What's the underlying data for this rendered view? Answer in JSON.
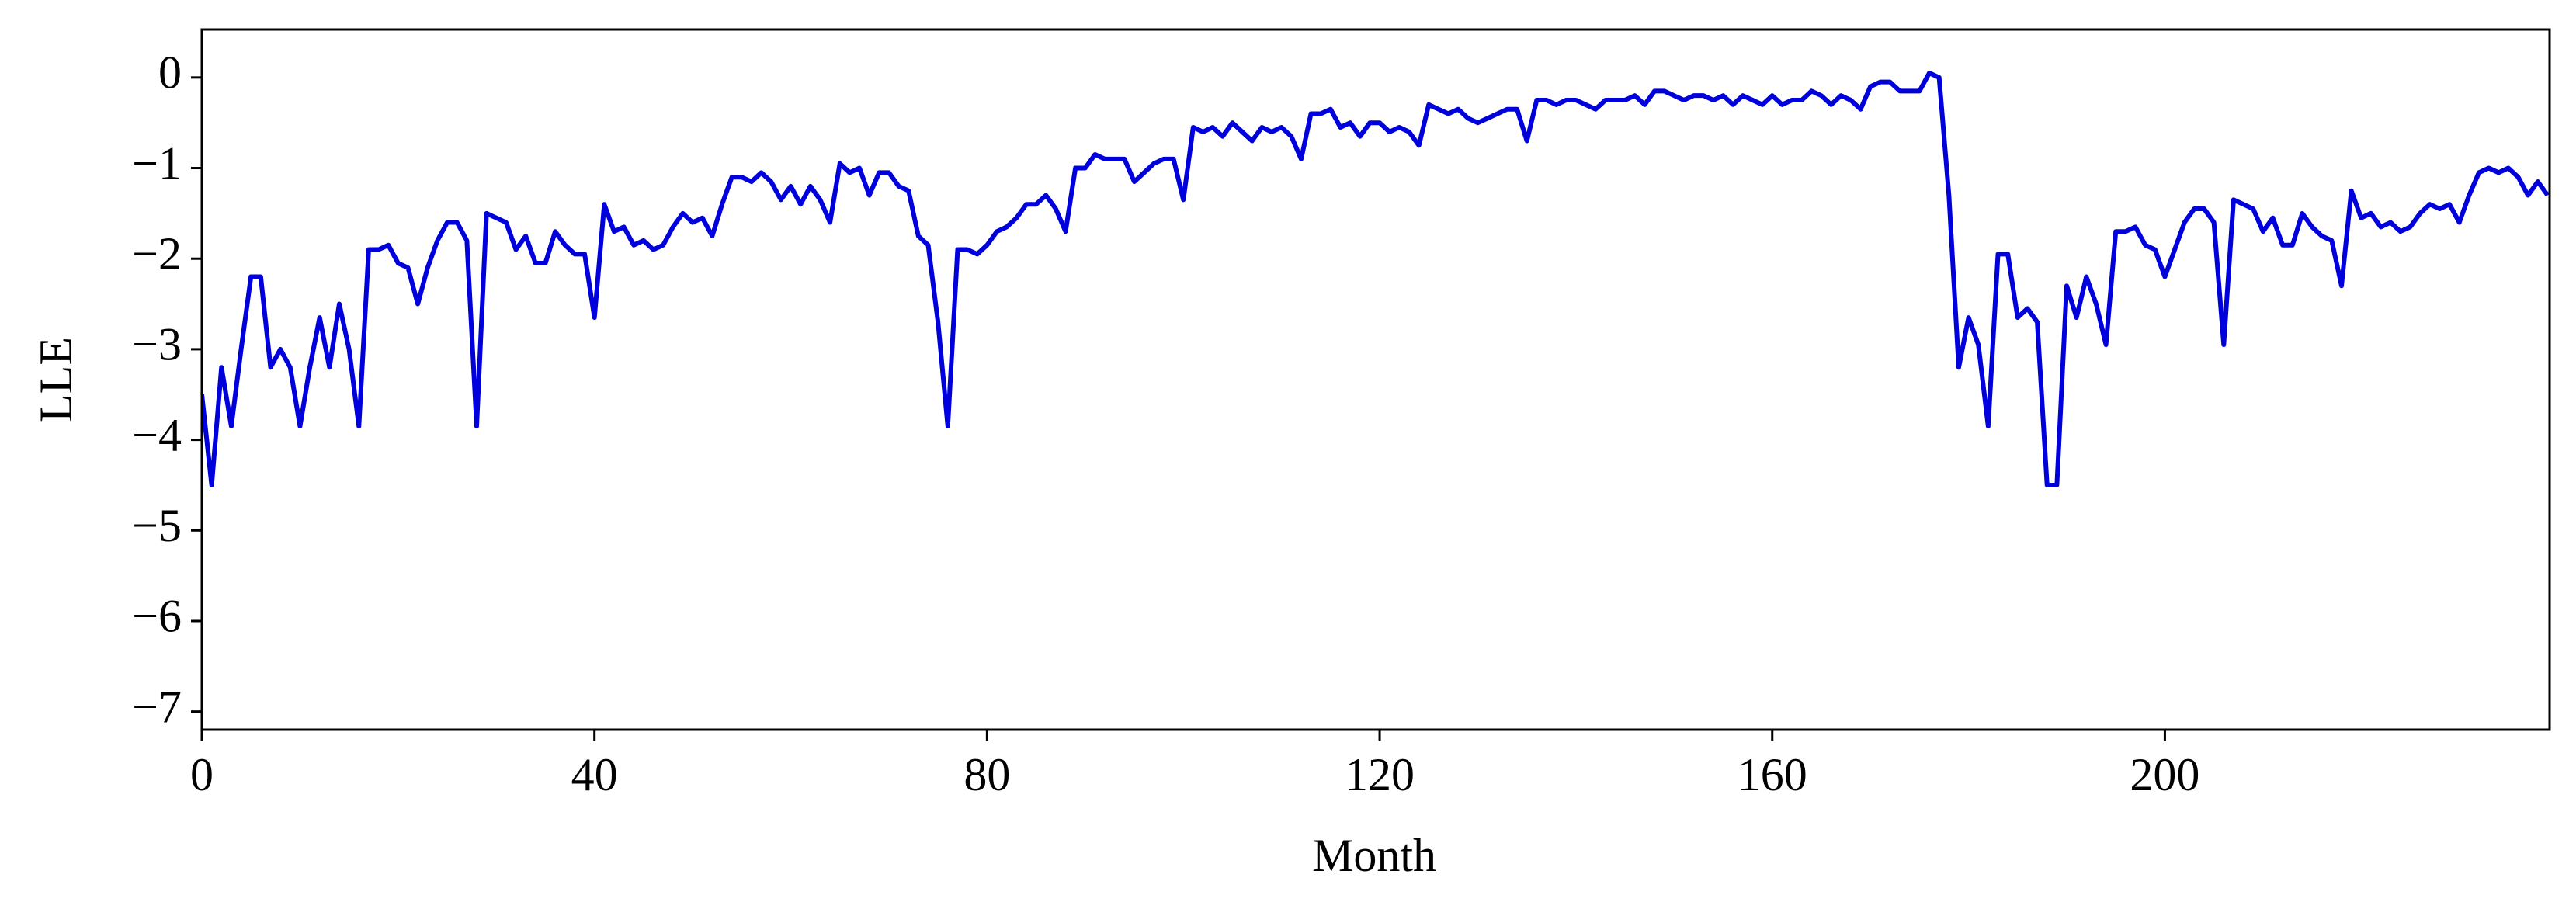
{
  "chart_data": {
    "type": "line",
    "x_label": "Month",
    "y_label": "LLE",
    "xlim": [
      0,
      239.2
    ],
    "ylim": [
      -7.2,
      0.53
    ],
    "xticks": [
      0,
      40,
      80,
      120,
      160,
      200
    ],
    "yticks": [
      0,
      {
        "value": -1,
        "label": "−1"
      },
      {
        "value": -2,
        "label": "−2"
      },
      {
        "value": -3,
        "label": "−3"
      },
      {
        "value": -4,
        "label": "−4"
      },
      {
        "value": -5,
        "label": "−5"
      },
      {
        "value": -6,
        "label": "−6"
      },
      {
        "value": -7,
        "label": "−7"
      }
    ],
    "grid": false,
    "x": [
      0,
      1,
      2,
      3,
      4,
      5,
      6,
      7,
      8,
      9,
      10,
      11,
      12,
      13,
      14,
      15,
      16,
      17,
      18,
      19,
      20,
      21,
      22,
      23,
      24,
      25,
      26,
      27,
      28,
      29,
      30,
      31,
      32,
      33,
      34,
      35,
      36,
      37,
      38,
      39,
      40,
      41,
      42,
      43,
      44,
      45,
      46,
      47,
      48,
      49,
      50,
      51,
      52,
      53,
      54,
      55,
      56,
      57,
      58,
      59,
      60,
      61,
      62,
      63,
      64,
      65,
      66,
      67,
      68,
      69,
      70,
      71,
      72,
      73,
      74,
      75,
      76,
      77,
      78,
      79,
      80,
      81,
      82,
      83,
      84,
      85,
      86,
      87,
      88,
      89,
      90,
      91,
      92,
      93,
      94,
      95,
      96,
      97,
      98,
      99,
      100,
      101,
      102,
      103,
      104,
      105,
      106,
      107,
      108,
      109,
      110,
      111,
      112,
      113,
      114,
      115,
      116,
      117,
      118,
      119,
      120,
      121,
      122,
      123,
      124,
      125,
      126,
      127,
      128,
      129,
      130,
      131,
      132,
      133,
      134,
      135,
      136,
      137,
      138,
      139,
      140,
      141,
      142,
      143,
      144,
      145,
      146,
      147,
      148,
      149,
      150,
      151,
      152,
      153,
      154,
      155,
      156,
      157,
      158,
      159,
      160,
      161,
      162,
      163,
      164,
      165,
      166,
      167,
      168,
      169,
      170,
      171,
      172,
      173,
      174,
      175,
      176,
      177,
      178,
      179,
      180,
      181,
      182,
      183,
      184,
      185,
      186,
      187,
      188,
      189,
      190,
      191,
      192,
      193,
      194,
      195,
      196,
      197,
      198,
      199,
      200,
      201,
      202,
      203,
      204,
      205,
      206,
      207,
      208,
      209,
      210,
      211,
      212,
      213,
      214,
      215,
      216,
      217,
      218,
      219,
      220,
      221,
      222,
      223,
      224,
      225,
      226,
      227,
      228,
      229,
      230,
      231,
      232,
      233,
      234,
      235,
      236,
      237,
      238,
      239
    ],
    "series": [
      {
        "color": "#0000dd",
        "values": [
          -3.5,
          -4.5,
          -3.2,
          -3.85,
          -3.0,
          -2.2,
          -2.2,
          -3.2,
          -3.0,
          -3.2,
          -3.85,
          -3.2,
          -2.65,
          -3.2,
          -2.5,
          -3.0,
          -3.85,
          -1.9,
          -1.9,
          -1.85,
          -2.05,
          -2.1,
          -2.5,
          -2.1,
          -1.8,
          -1.6,
          -1.6,
          -1.8,
          -3.85,
          -1.5,
          -1.55,
          -1.6,
          -1.9,
          -1.75,
          -2.05,
          -2.05,
          -1.7,
          -1.85,
          -1.95,
          -1.95,
          -2.65,
          -1.4,
          -1.7,
          -1.65,
          -1.85,
          -1.8,
          -1.9,
          -1.85,
          -1.65,
          -1.5,
          -1.6,
          -1.55,
          -1.75,
          -1.4,
          -1.1,
          -1.1,
          -1.15,
          -1.05,
          -1.15,
          -1.35,
          -1.2,
          -1.4,
          -1.2,
          -1.35,
          -1.6,
          -0.95,
          -1.05,
          -1.0,
          -1.3,
          -1.05,
          -1.05,
          -1.2,
          -1.25,
          -1.75,
          -1.85,
          -2.7,
          -3.85,
          -1.9,
          -1.9,
          -1.95,
          -1.85,
          -1.7,
          -1.65,
          -1.55,
          -1.4,
          -1.4,
          -1.3,
          -1.45,
          -1.7,
          -1.0,
          -1.0,
          -0.85,
          -0.9,
          -0.9,
          -0.9,
          -1.15,
          -1.05,
          -0.95,
          -0.9,
          -0.9,
          -1.35,
          -0.55,
          -0.6,
          -0.55,
          -0.65,
          -0.5,
          -0.6,
          -0.7,
          -0.55,
          -0.6,
          -0.55,
          -0.65,
          -0.9,
          -0.4,
          -0.4,
          -0.35,
          -0.55,
          -0.5,
          -0.65,
          -0.5,
          -0.5,
          -0.6,
          -0.55,
          -0.6,
          -0.75,
          -0.3,
          -0.35,
          -0.4,
          -0.35,
          -0.45,
          -0.5,
          -0.45,
          -0.4,
          -0.35,
          -0.35,
          -0.7,
          -0.25,
          -0.25,
          -0.3,
          -0.25,
          -0.25,
          -0.3,
          -0.35,
          -0.25,
          -0.25,
          -0.25,
          -0.2,
          -0.3,
          -0.15,
          -0.15,
          -0.2,
          -0.25,
          -0.2,
          -0.2,
          -0.25,
          -0.2,
          -0.3,
          -0.2,
          -0.25,
          -0.3,
          -0.2,
          -0.3,
          -0.25,
          -0.25,
          -0.15,
          -0.2,
          -0.3,
          -0.2,
          -0.25,
          -0.35,
          -0.1,
          -0.05,
          -0.05,
          -0.15,
          -0.15,
          -0.15,
          0.05,
          0.0,
          -1.3,
          -3.2,
          -2.65,
          -2.95,
          -3.85,
          -1.95,
          -1.95,
          -2.65,
          -2.55,
          -2.7,
          -4.5,
          -4.5,
          -2.3,
          -2.65,
          -2.2,
          -2.5,
          -2.95,
          -1.7,
          -1.7,
          -1.65,
          -1.85,
          -1.9,
          -2.2,
          -1.9,
          -1.6,
          -1.45,
          -1.45,
          -1.6,
          -2.95,
          -1.35,
          -1.4,
          -1.45,
          -1.7,
          -1.55,
          -1.85,
          -1.85,
          -1.5,
          -1.65,
          -1.75,
          -1.8,
          -2.3,
          -1.25,
          -1.55,
          -1.5,
          -1.65,
          -1.6,
          -1.7,
          -1.65,
          -1.5,
          -1.4,
          -1.45,
          -1.4,
          -1.6,
          -1.3,
          -1.05,
          -1.0,
          -1.05,
          -1.0,
          -1.1,
          -1.3,
          -1.15,
          -1.3
        ]
      }
    ]
  }
}
